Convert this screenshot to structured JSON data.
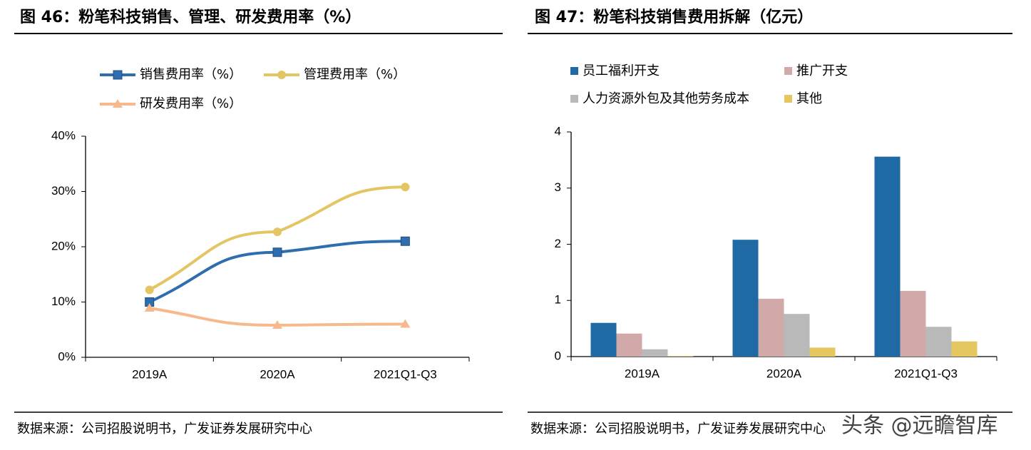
{
  "chart_data": [
    {
      "type": "line",
      "title": "图 46：粉笔科技销售、管理、研发费用率（%）",
      "categories": [
        "2019A",
        "2020A",
        "2021Q1-Q3"
      ],
      "series": [
        {
          "name": "销售费用率（%）",
          "color": "#2e6ead",
          "marker": "square",
          "values": [
            10,
            19,
            21
          ]
        },
        {
          "name": "管理费用率（%）",
          "color": "#e3c663",
          "marker": "circle",
          "values": [
            12.2,
            22.7,
            30.8
          ]
        },
        {
          "name": "研发费用率（%）",
          "color": "#f7b98c",
          "marker": "triangle",
          "values": [
            8.9,
            5.8,
            6.0
          ]
        }
      ],
      "ylim": [
        0,
        40
      ],
      "yticks": [
        {
          "value": 0,
          "label": "0%"
        },
        {
          "value": 10,
          "label": "10%"
        },
        {
          "value": 20,
          "label": "20%"
        },
        {
          "value": 30,
          "label": "30%"
        },
        {
          "value": 40,
          "label": "40%"
        }
      ],
      "source": "数据来源：公司招股说明书，广发证券发展研究中心"
    },
    {
      "type": "bar",
      "title": "图 47：粉笔科技销售费用拆解（亿元）",
      "categories": [
        "2019A",
        "2020A",
        "2021Q1-Q3"
      ],
      "series": [
        {
          "name": "员工福利开支",
          "color": "#1f6aa5",
          "values": [
            0.6,
            2.08,
            3.56
          ]
        },
        {
          "name": "推广开支",
          "color": "#d1a9a9",
          "values": [
            0.41,
            1.03,
            1.17
          ]
        },
        {
          "name": "人力资源外包及其他劳务成本",
          "color": "#b9b9b9",
          "values": [
            0.13,
            0.76,
            0.53
          ]
        },
        {
          "name": "其他",
          "color": "#e6c65e",
          "values": [
            0.01,
            0.16,
            0.27
          ]
        }
      ],
      "ylim": [
        0,
        4
      ],
      "yticks": [
        0,
        1,
        2,
        3,
        4
      ],
      "source": "数据来源：公司招股说明书，广发证券发展研究中心"
    }
  ],
  "watermark": "头条 @远瞻智库"
}
